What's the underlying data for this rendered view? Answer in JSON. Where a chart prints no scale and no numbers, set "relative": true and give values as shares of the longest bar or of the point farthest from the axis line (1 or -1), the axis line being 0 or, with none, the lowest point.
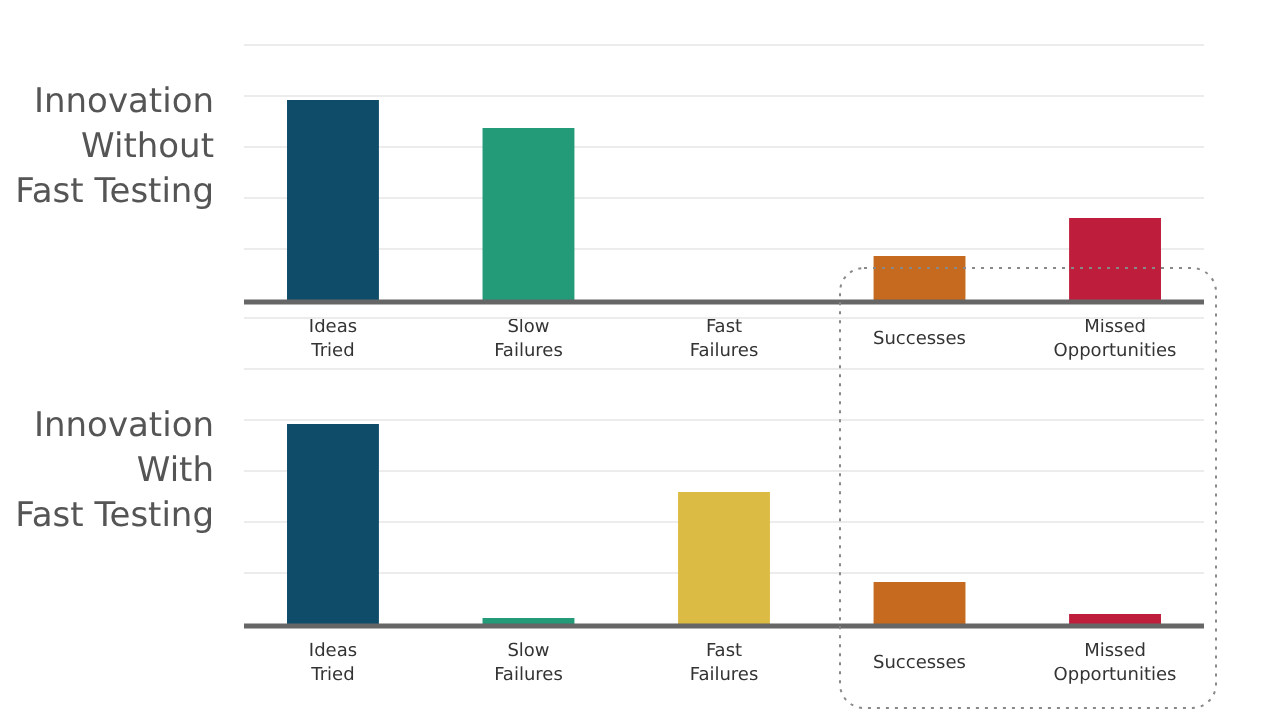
{
  "chart_data": [
    {
      "type": "bar",
      "title": "Innovation\nWithout\nFast Testing",
      "categories": [
        "Ideas\nTried",
        "Slow\nFailures",
        "Fast\nFailures",
        "Successes",
        "Missed\nOpportunities"
      ],
      "values": [
        1,
        0.86,
        0,
        0.22,
        0.41
      ],
      "colors": [
        "#0f4c6a",
        "#239b78",
        "#dcbb45",
        "#c56a1e",
        "#be1e3c"
      ],
      "relative": true,
      "grid": true
    },
    {
      "type": "bar",
      "title": "Innovation\nWith\nFast Testing",
      "categories": [
        "Ideas\nTried",
        "Slow\nFailures",
        "Fast\nFailures",
        "Successes",
        "Missed\nOpportunities"
      ],
      "values": [
        1,
        0.03,
        0.66,
        0.21,
        0.05
      ],
      "colors": [
        "#0f4c6a",
        "#239b78",
        "#dcbb45",
        "#c56a1e",
        "#be1e3c"
      ],
      "relative": true,
      "grid": true
    }
  ]
}
